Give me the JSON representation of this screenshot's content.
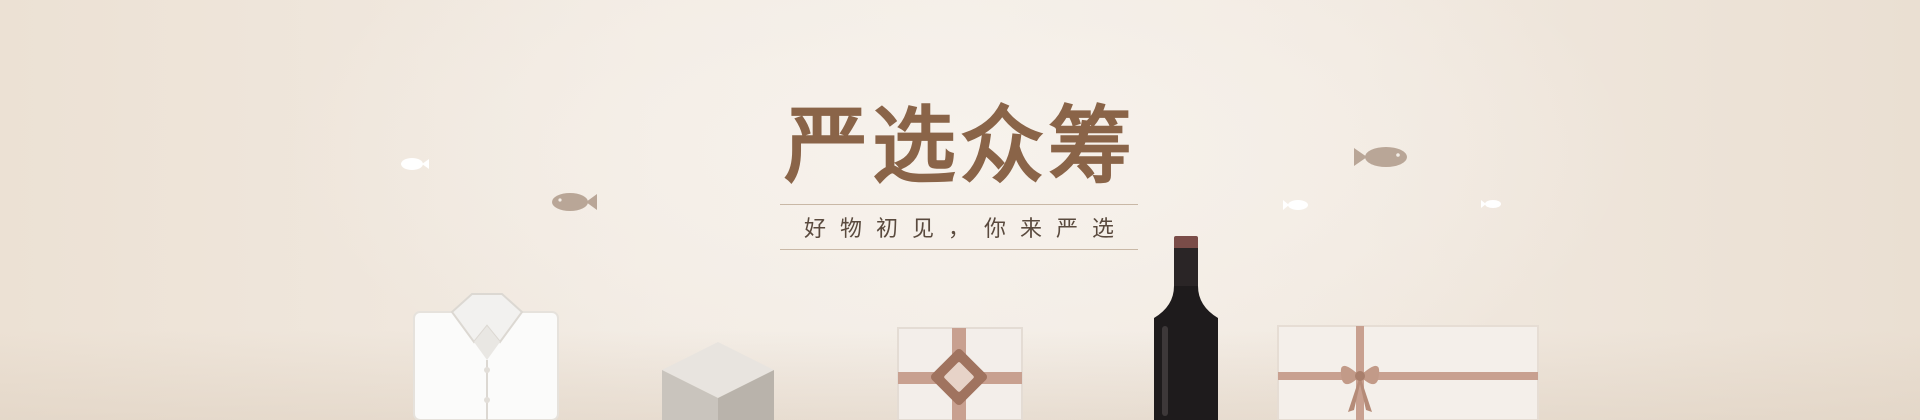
{
  "banner": {
    "headline": "严选众筹",
    "tagline": "好物初见，你来严选"
  },
  "colors": {
    "headline": "#8a6448",
    "tagline": "#5a4a3e",
    "ribbon": "#c8a090",
    "fish": "#b9a697"
  },
  "icons": [
    "fish-icon",
    "shirt-icon",
    "box-icon",
    "gift-box-icon",
    "wine-bottle-icon"
  ]
}
